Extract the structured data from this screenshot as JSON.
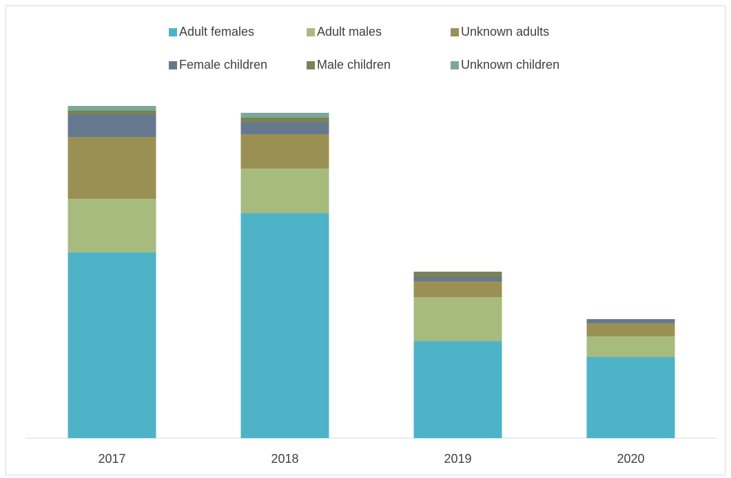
{
  "chart_data": {
    "type": "stacked_bar",
    "categories": [
      "2017",
      "2018",
      "2019",
      "2020"
    ],
    "series": [
      {
        "name": "Adult females",
        "color": "#4fb3c8",
        "values": [
          270,
          327,
          141,
          118
        ]
      },
      {
        "name": "Adult males",
        "color": "#a8bb7f",
        "values": [
          78,
          65,
          64,
          30
        ]
      },
      {
        "name": "Unknown adults",
        "color": "#9b9053",
        "values": [
          90,
          50,
          23,
          19
        ]
      },
      {
        "name": "Female children",
        "color": "#65788f",
        "values": [
          32,
          17,
          6,
          6
        ]
      },
      {
        "name": "Male children",
        "color": "#7a8257",
        "values": [
          6,
          7,
          8,
          0
        ]
      },
      {
        "name": "Unknown children",
        "color": "#7ca89a",
        "values": [
          7,
          7,
          0,
          0
        ]
      }
    ],
    "ylim": [
      0,
      500
    ],
    "grid": false,
    "legend": "top"
  }
}
